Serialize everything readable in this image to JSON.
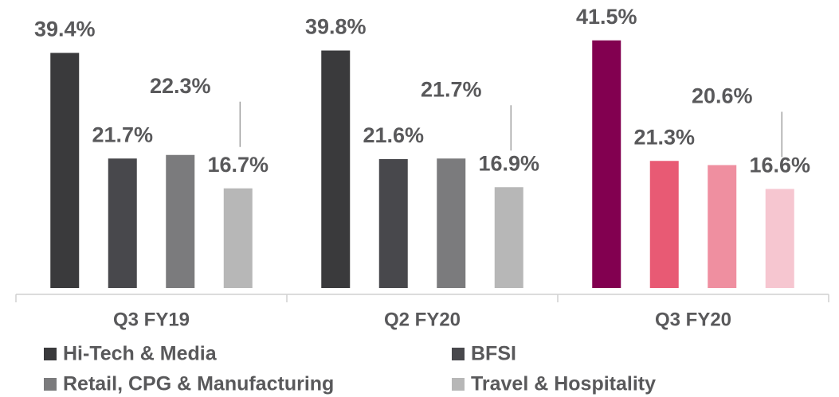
{
  "chart_data": {
    "type": "bar",
    "categories": [
      "Q3 FY19",
      "Q2 FY20",
      "Q3 FY20"
    ],
    "series": [
      {
        "name": "Hi-Tech & Media",
        "color": "#3a3a3c",
        "colors": [
          "#3a3a3c",
          "#3a3a3c",
          "#820050"
        ],
        "values": [
          39.4,
          39.8,
          41.5
        ],
        "value_labels": [
          "39.4%",
          "39.8%",
          "41.5%"
        ]
      },
      {
        "name": "BFSI",
        "color": "#48484c",
        "colors": [
          "#48484c",
          "#48484c",
          "#e85a74"
        ],
        "values": [
          21.7,
          21.6,
          21.3
        ],
        "value_labels": [
          "21.7%",
          "21.6%",
          "21.3%"
        ]
      },
      {
        "name": "Retail, CPG & Manufacturing",
        "color": "#7b7b7d",
        "colors": [
          "#7b7b7d",
          "#7b7b7d",
          "#ef8fa0"
        ],
        "values": [
          22.3,
          21.7,
          20.6
        ],
        "value_labels": [
          "22.3%",
          "21.7%",
          "20.6%"
        ]
      },
      {
        "name": "Travel & Hospitality",
        "color": "#b7b7b7",
        "colors": [
          "#b7b7b7",
          "#b7b7b7",
          "#f6c6d0"
        ],
        "values": [
          16.7,
          16.9,
          16.6
        ],
        "value_labels": [
          "16.7%",
          "16.9%",
          "16.6%"
        ]
      }
    ],
    "ylim": [
      0,
      48
    ]
  }
}
